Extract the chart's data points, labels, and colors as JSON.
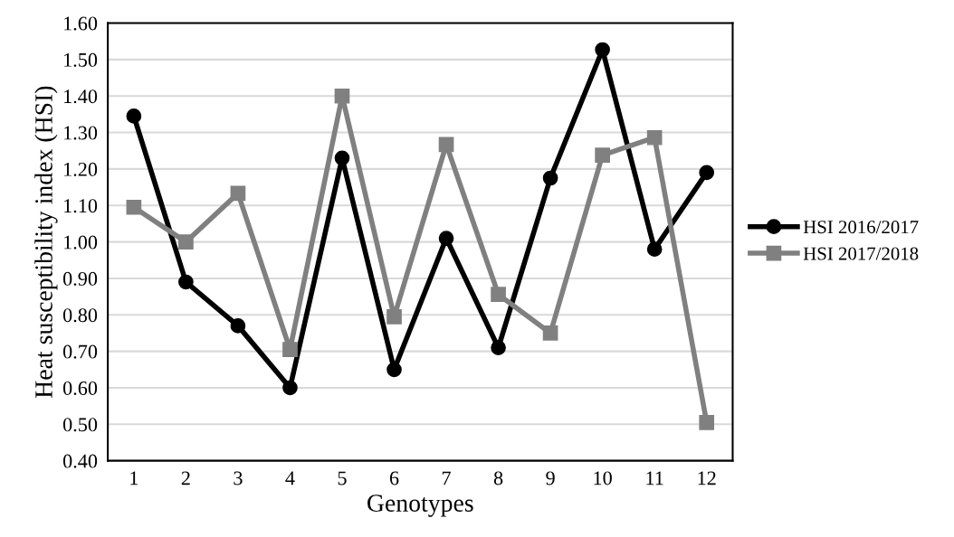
{
  "chart_data": {
    "type": "line",
    "xlabel": "Genotypes",
    "ylabel": "Heat susceptibility index (HSI)",
    "categories": [
      "1",
      "2",
      "3",
      "4",
      "5",
      "6",
      "7",
      "8",
      "9",
      "10",
      "11",
      "12"
    ],
    "series": [
      {
        "name": "HSI 2016/2017",
        "color": "#000000",
        "marker": "circle",
        "values": [
          1.345,
          0.89,
          0.77,
          0.6,
          1.23,
          0.65,
          1.01,
          0.71,
          1.175,
          1.527,
          0.98,
          1.19
        ]
      },
      {
        "name": "HSI 2017/2018",
        "color": "#808080",
        "marker": "square",
        "values": [
          1.095,
          1.0,
          1.133,
          0.705,
          1.4,
          0.795,
          1.267,
          0.856,
          0.75,
          1.238,
          1.286,
          0.505
        ]
      }
    ],
    "ylim": [
      0.4,
      1.6
    ],
    "yticks": [
      {
        "value": 0.4,
        "label": "0.40"
      },
      {
        "value": 0.5,
        "label": "0.50"
      },
      {
        "value": 0.6,
        "label": "0.60"
      },
      {
        "value": 0.7,
        "label": "0.70"
      },
      {
        "value": 0.8,
        "label": "0.80"
      },
      {
        "value": 0.9,
        "label": "0.90"
      },
      {
        "value": 1.0,
        "label": "1.00"
      },
      {
        "value": 1.1,
        "label": "1.10"
      },
      {
        "value": 1.2,
        "label": "1.20"
      },
      {
        "value": 1.3,
        "label": "1.30"
      },
      {
        "value": 1.4,
        "label": "1.40"
      },
      {
        "value": 1.5,
        "label": "1.50"
      },
      {
        "value": 1.6,
        "label": "1.60"
      }
    ],
    "grid": "y",
    "legend": "right",
    "line_style": "solid"
  }
}
